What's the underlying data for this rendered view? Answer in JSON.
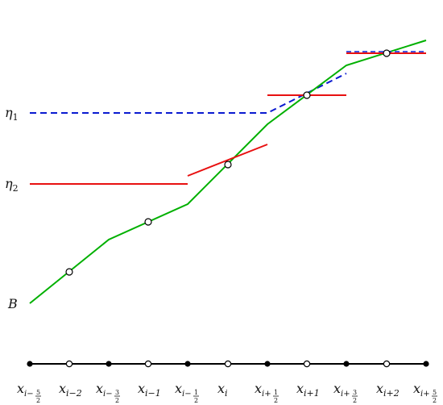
{
  "colors": {
    "profile": "#00b000",
    "reconstruction": "#e81010",
    "eta_line": "#0a1ad0",
    "axis": "#000000"
  },
  "y_labels": {
    "eta1": "η",
    "eta1_sub": "1",
    "eta2": "η",
    "eta2_sub": "2",
    "bottom": "B"
  },
  "x_labels": [
    {
      "base": "x",
      "sub": "i−",
      "frac_num": "5",
      "frac_den": "2",
      "kind": "half"
    },
    {
      "base": "x",
      "sub": "i−2",
      "kind": "int"
    },
    {
      "base": "x",
      "sub": "i−",
      "frac_num": "3",
      "frac_den": "2",
      "kind": "half"
    },
    {
      "base": "x",
      "sub": "i−1",
      "kind": "int"
    },
    {
      "base": "x",
      "sub": "i−",
      "frac_num": "1",
      "frac_den": "2",
      "kind": "half"
    },
    {
      "base": "x",
      "sub": "i",
      "kind": "int"
    },
    {
      "base": "x",
      "sub": "i+",
      "frac_num": "1",
      "frac_den": "2",
      "kind": "half"
    },
    {
      "base": "x",
      "sub": "i+1",
      "kind": "int"
    },
    {
      "base": "x",
      "sub": "i+",
      "frac_num": "3",
      "frac_den": "2",
      "kind": "half"
    },
    {
      "base": "x",
      "sub": "i+2",
      "kind": "int"
    },
    {
      "base": "x",
      "sub": "i+",
      "frac_num": "5",
      "frac_den": "2",
      "kind": "half"
    }
  ]
}
